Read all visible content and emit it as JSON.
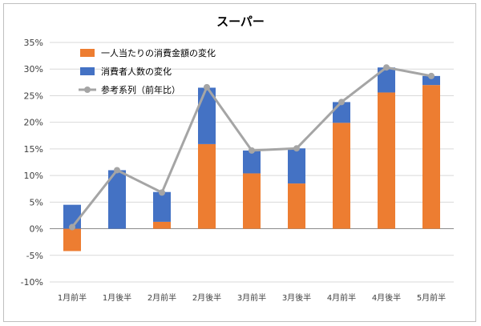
{
  "chart_data": {
    "type": "bar",
    "title": "スーパー",
    "categories": [
      "1月前半",
      "1月後半",
      "2月前半",
      "2月後半",
      "3月前半",
      "3月後半",
      "4月前半",
      "4月後半",
      "5月前半"
    ],
    "yticks": [
      "35%",
      "30%",
      "25%",
      "20%",
      "15%",
      "10%",
      "5%",
      "0%",
      "-5%",
      "-10%"
    ],
    "ylim": [
      -10,
      35
    ],
    "series": [
      {
        "name": "一人当たりの消費金額の変化",
        "kind": "stacked-bar",
        "color": "#ed7d31",
        "values": [
          -4.2,
          0,
          1.3,
          15.9,
          10.4,
          8.5,
          19.9,
          25.6,
          27.0
        ]
      },
      {
        "name": "消費者人数の変化",
        "kind": "stacked-bar",
        "color": "#4472c4",
        "values": [
          4.5,
          11.0,
          5.6,
          10.6,
          4.3,
          6.6,
          3.9,
          4.7,
          1.7
        ]
      },
      {
        "name": "参考系列（前年比）",
        "kind": "line",
        "color": "#a5a5a5",
        "values": [
          0.3,
          11.0,
          6.8,
          26.6,
          14.7,
          15.1,
          23.8,
          30.3,
          28.7
        ]
      }
    ],
    "legend_position": "top-left",
    "grid": true
  }
}
